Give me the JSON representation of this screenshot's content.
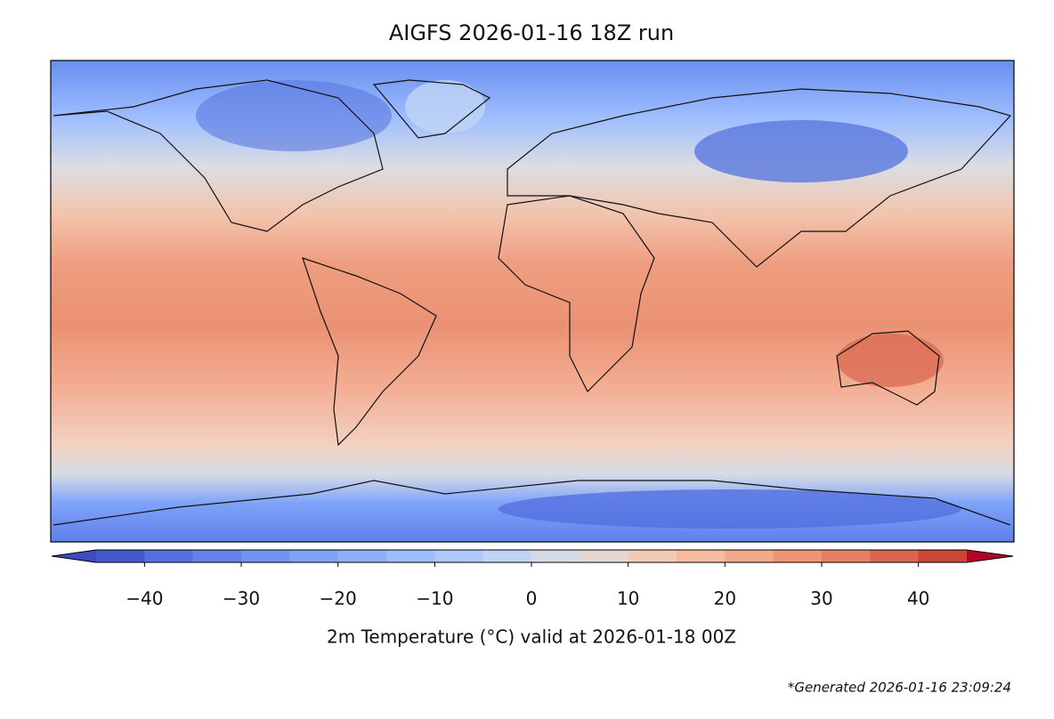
{
  "title": "AIGFS 2026-01-16 18Z run",
  "colorbar": {
    "label": "2m Temperature (°C) valid at 2026-01-18 00Z",
    "lim": [
      -45,
      45
    ],
    "ticks": [
      {
        "value": -40,
        "label": "−40"
      },
      {
        "value": -30,
        "label": "−30"
      },
      {
        "value": -20,
        "label": "−20"
      },
      {
        "value": -10,
        "label": "−10"
      },
      0,
      10,
      20,
      30,
      40
    ],
    "levels": [
      -45,
      -40,
      -35,
      -30,
      -25,
      -20,
      -15,
      -10,
      -5,
      0,
      5,
      10,
      15,
      20,
      25,
      30,
      35,
      40,
      45
    ],
    "colors": [
      "#4358cb",
      "#5470de",
      "#6282ea",
      "#7093f3",
      "#7ea3f9",
      "#8db0fe",
      "#9ebeff",
      "#aec9fc",
      "#c0d4f5",
      "#d5dbe5",
      "#e5d8d1",
      "#f2cbb7",
      "#f7bba0",
      "#f5a98b",
      "#ef9575",
      "#e67f63",
      "#d8654f",
      "#c84838"
    ],
    "extend_colors": [
      "#3b4cc0",
      "#b40426"
    ]
  },
  "footnote": "*Generated 2026-01-16 23:09:24"
}
